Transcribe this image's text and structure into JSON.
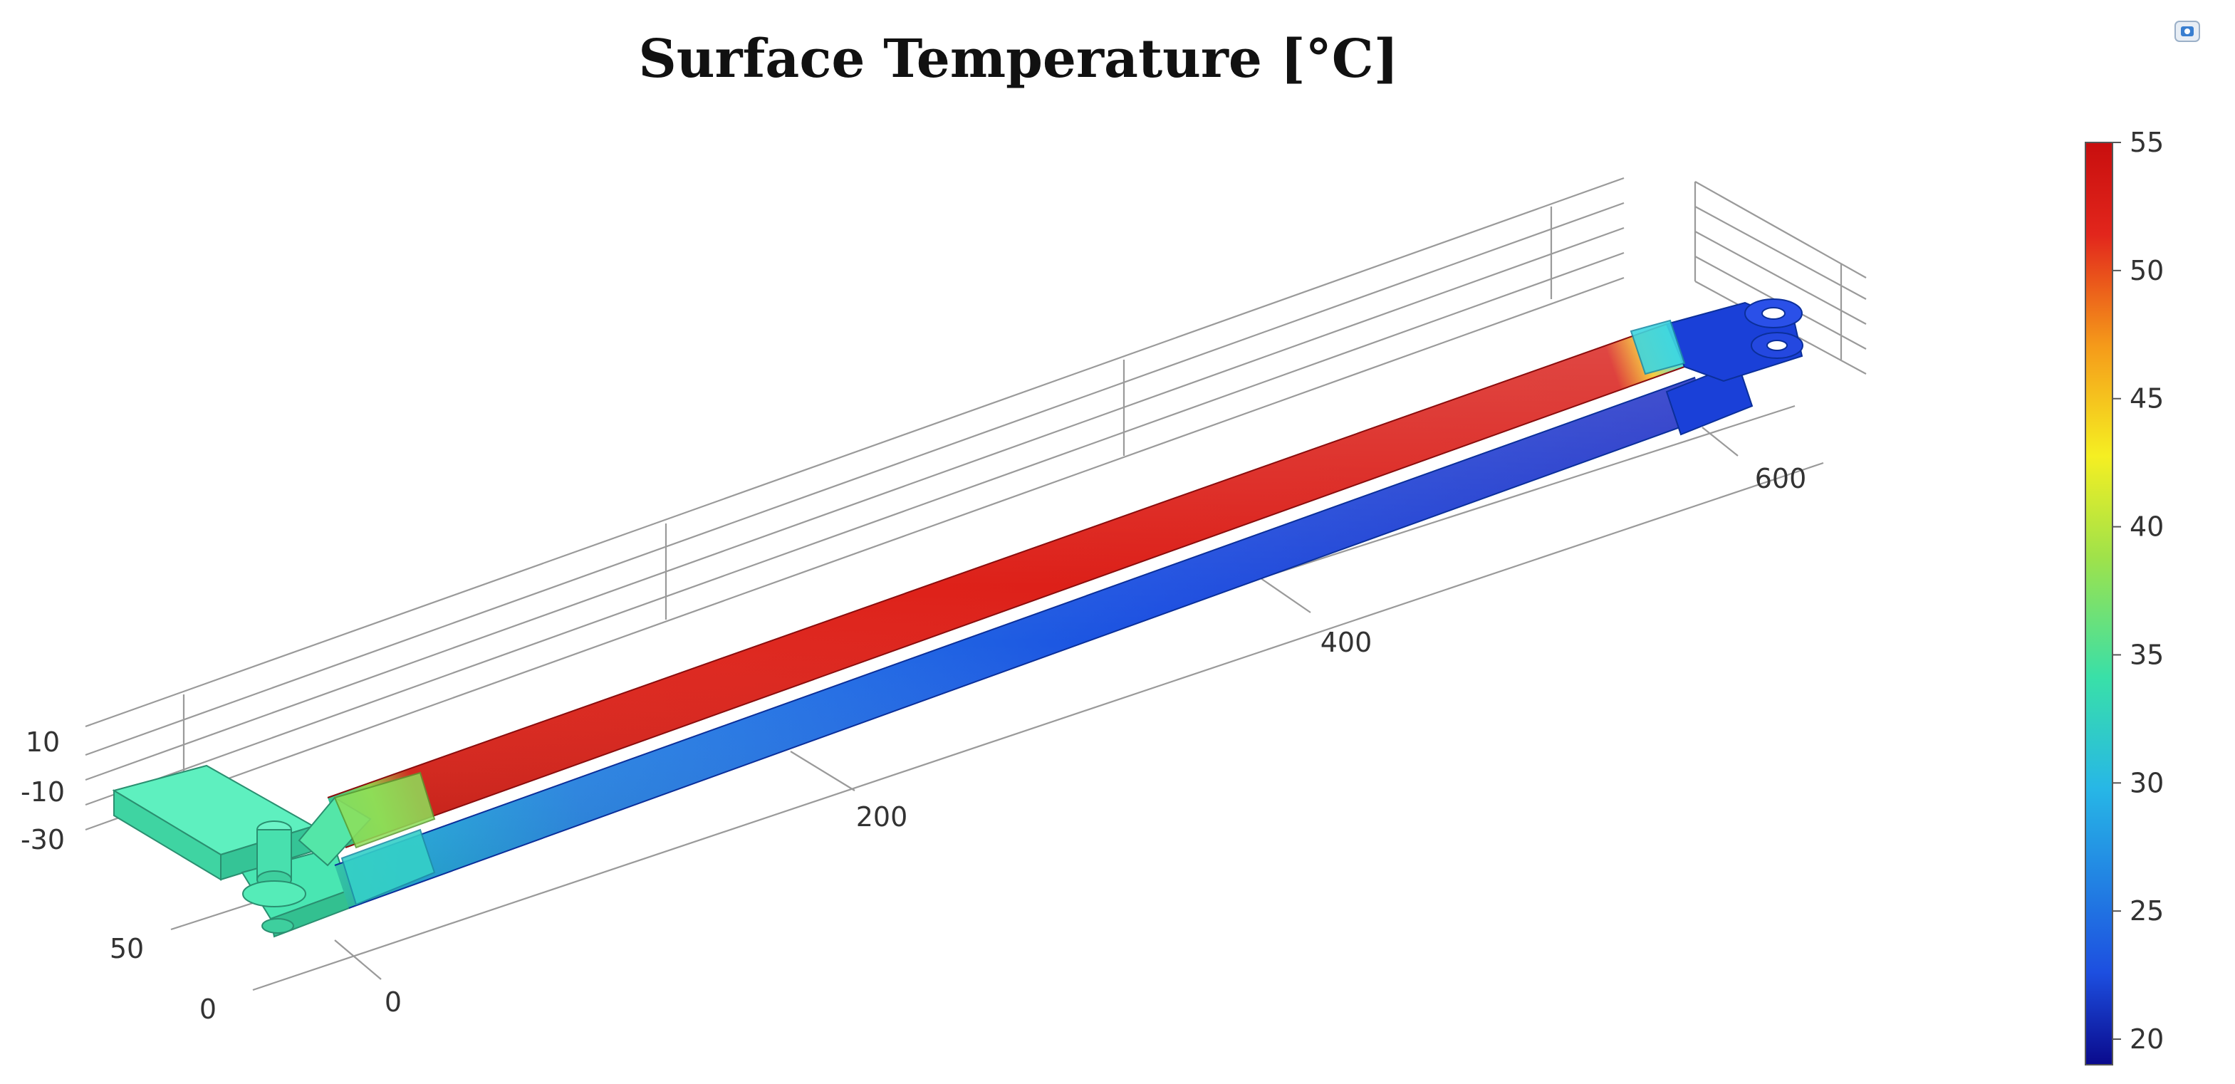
{
  "title": "Surface Temperature [°C]",
  "axes": {
    "x_ticks": [
      "0",
      "200",
      "400",
      "600"
    ],
    "y_ticks": [
      "0",
      "50"
    ],
    "z_ticks": [
      "10",
      "-10",
      "-30"
    ]
  },
  "colorbar": {
    "min": 19,
    "max": 55,
    "ticks": [
      "55",
      "50",
      "45",
      "40",
      "35",
      "30",
      "25",
      "20"
    ],
    "colormap": [
      "#0a0a8c",
      "#1d4fe0",
      "#27b7e6",
      "#39e0a8",
      "#9fe24a",
      "#f5ef22",
      "#f59a1a",
      "#e2261c",
      "#c80e0e"
    ]
  },
  "icons": {
    "toolbar": "camera-icon"
  }
}
